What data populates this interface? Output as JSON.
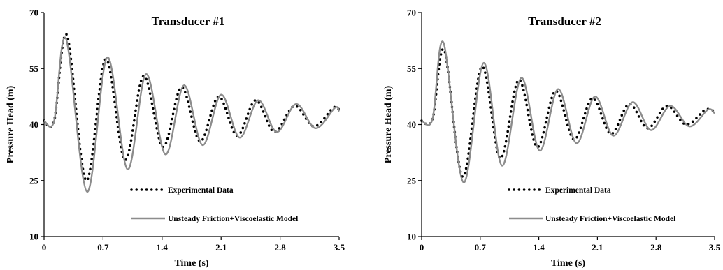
{
  "chart_data": [
    {
      "type": "line",
      "title": "Transducer #1",
      "xlabel": "Time (s)",
      "ylabel": "Pressure Head (m)",
      "xlim": [
        0,
        3.5
      ],
      "ylim": [
        10,
        70
      ],
      "xticks": [
        "0",
        "0.7",
        "1.4",
        "2.1",
        "2.8",
        "3.5"
      ],
      "yticks": [
        "10",
        "25",
        "40",
        "55",
        "70"
      ],
      "legend_position": "bottom-center",
      "series": [
        {
          "name": "Experimental Data",
          "style": "dotted",
          "color": "#000000",
          "x": [
            0,
            0.12,
            0.27,
            0.5,
            0.73,
            0.96,
            1.18,
            1.41,
            1.63,
            1.85,
            2.07,
            2.29,
            2.51,
            2.73,
            2.97,
            3.2,
            3.43,
            3.5
          ],
          "y": [
            41,
            41,
            64,
            25,
            57.5,
            30.5,
            53,
            34,
            50,
            35.5,
            47.5,
            37,
            46.5,
            38,
            45,
            39.5,
            44.5,
            44
          ]
        },
        {
          "name": "Unsteady Friction+Viscoelastic Model",
          "style": "solid",
          "color": "#8c8c8c",
          "x": [
            0,
            0.12,
            0.26,
            0.51,
            0.75,
            0.99,
            1.21,
            1.44,
            1.66,
            1.88,
            2.1,
            2.32,
            2.54,
            2.76,
            2.99,
            3.22,
            3.45,
            3.5
          ],
          "y": [
            41,
            41,
            63,
            22,
            58,
            28,
            53.5,
            32,
            50.5,
            34.5,
            48,
            36.5,
            46.5,
            38,
            45.5,
            39,
            44.5,
            43.5
          ]
        }
      ]
    },
    {
      "type": "line",
      "title": "Transducer #2",
      "xlabel": "Time (s)",
      "ylabel": "Pressure Head (m)",
      "xlim": [
        0,
        3.5
      ],
      "ylim": [
        10,
        70
      ],
      "xticks": [
        "0",
        "0.7",
        "1.4",
        "2.1",
        "2.8",
        "3.5"
      ],
      "yticks": [
        "10",
        "25",
        "40",
        "55",
        "70"
      ],
      "legend_position": "bottom-center",
      "series": [
        {
          "name": "Experimental Data",
          "style": "dotted",
          "color": "#000000",
          "x": [
            0,
            0.13,
            0.27,
            0.49,
            0.72,
            0.94,
            1.16,
            1.38,
            1.6,
            1.82,
            2.04,
            2.26,
            2.48,
            2.7,
            2.93,
            3.16,
            3.39,
            3.5
          ],
          "y": [
            41,
            41.5,
            60,
            26,
            55.5,
            31,
            52,
            34,
            49,
            36,
            47,
            37.5,
            45.5,
            39,
            45,
            40,
            44,
            43.5
          ]
        },
        {
          "name": "Unsteady Friction+Viscoelastic Model",
          "style": "solid",
          "color": "#8c8c8c",
          "x": [
            0,
            0.13,
            0.26,
            0.5,
            0.74,
            0.96,
            1.19,
            1.41,
            1.63,
            1.85,
            2.07,
            2.29,
            2.52,
            2.74,
            2.97,
            3.2,
            3.42,
            3.5
          ],
          "y": [
            41,
            41.5,
            62,
            24.5,
            56.5,
            29,
            52.5,
            33,
            49.5,
            35,
            47.5,
            37,
            46,
            38.5,
            45,
            39.5,
            44,
            43
          ]
        }
      ]
    }
  ]
}
